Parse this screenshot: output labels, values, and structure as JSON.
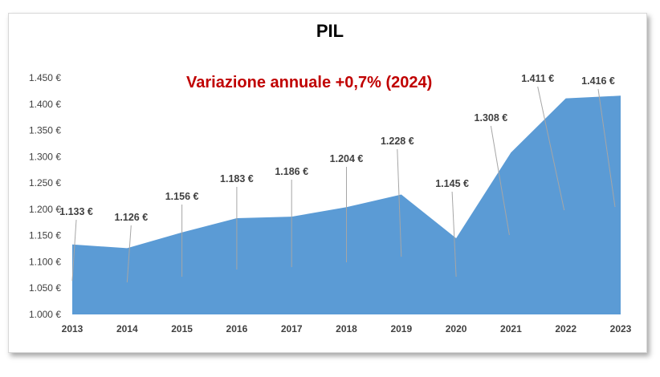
{
  "chart_data": {
    "type": "area",
    "title": "PIL",
    "subtitle": "Variazione annuale +0,7% (2024)",
    "categories": [
      "2013",
      "2014",
      "2015",
      "2016",
      "2017",
      "2018",
      "2019",
      "2020",
      "2021",
      "2022",
      "2023"
    ],
    "values": [
      1133,
      1126,
      1156,
      1183,
      1186,
      1204,
      1228,
      1145,
      1308,
      1411,
      1416
    ],
    "data_labels": [
      "1.133 €",
      "1.126 €",
      "1.156 €",
      "1.183 €",
      "1.186 €",
      "1.204 €",
      "1.228 €",
      "1.145 €",
      "1.308 €",
      "1.411 €",
      "1.416 €"
    ],
    "y_ticks": [
      1000,
      1050,
      1100,
      1150,
      1200,
      1250,
      1300,
      1350,
      1400,
      1450
    ],
    "y_tick_labels": [
      "1.000 €",
      "1.050 €",
      "1.100 €",
      "1.150 €",
      "1.200 €",
      "1.250 €",
      "1.300 €",
      "1.350 €",
      "1.400 €",
      "1.450 €"
    ],
    "ylim": [
      1000,
      1450
    ],
    "grid": false,
    "legend": "none",
    "colors": {
      "area": "#5b9bd5",
      "subtitle": "#c00000",
      "leader": "#a6a6a6"
    }
  }
}
